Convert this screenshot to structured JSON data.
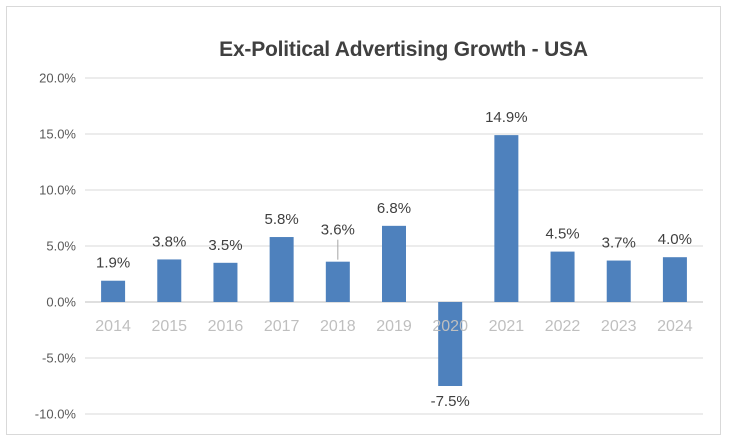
{
  "chart_data": {
    "type": "bar",
    "title": "Ex-Political Advertising Growth - USA",
    "categories": [
      "2014",
      "2015",
      "2016",
      "2017",
      "2018",
      "2019",
      "2020",
      "2021",
      "2022",
      "2023",
      "2024"
    ],
    "values": [
      1.9,
      3.8,
      3.5,
      5.8,
      3.6,
      6.8,
      -7.5,
      14.9,
      4.5,
      3.7,
      4.0
    ],
    "data_labels": [
      "1.9%",
      "3.8%",
      "3.5%",
      "5.8%",
      "3.6%",
      "6.8%",
      "-7.5%",
      "14.9%",
      "4.5%",
      "3.7%",
      "4.0%"
    ],
    "xlabel": "",
    "ylabel": "",
    "ylim": [
      -10,
      20
    ],
    "y_ticks": [
      {
        "value": 20,
        "label": "20.0%"
      },
      {
        "value": 15,
        "label": "15.0%"
      },
      {
        "value": 10,
        "label": "10.0%"
      },
      {
        "value": 5,
        "label": "5.0%"
      },
      {
        "value": 0,
        "label": "0.0%"
      },
      {
        "value": -5,
        "label": "-5.0%"
      },
      {
        "value": -10,
        "label": "-10.0%"
      }
    ],
    "grid": true,
    "legend": "none",
    "leader_line_category": "2018",
    "colors": {
      "bar": "#4E81BD",
      "gridline": "#D9D9D9",
      "zero_axis": "#BFBFBF",
      "title_text": "#404040",
      "data_label_text": "#404040",
      "y_tick_text": "#595959",
      "x_tick_text": "#BFBFBF",
      "frame_border": "#D9D9D9",
      "leader_line": "#A6A6A6"
    }
  }
}
